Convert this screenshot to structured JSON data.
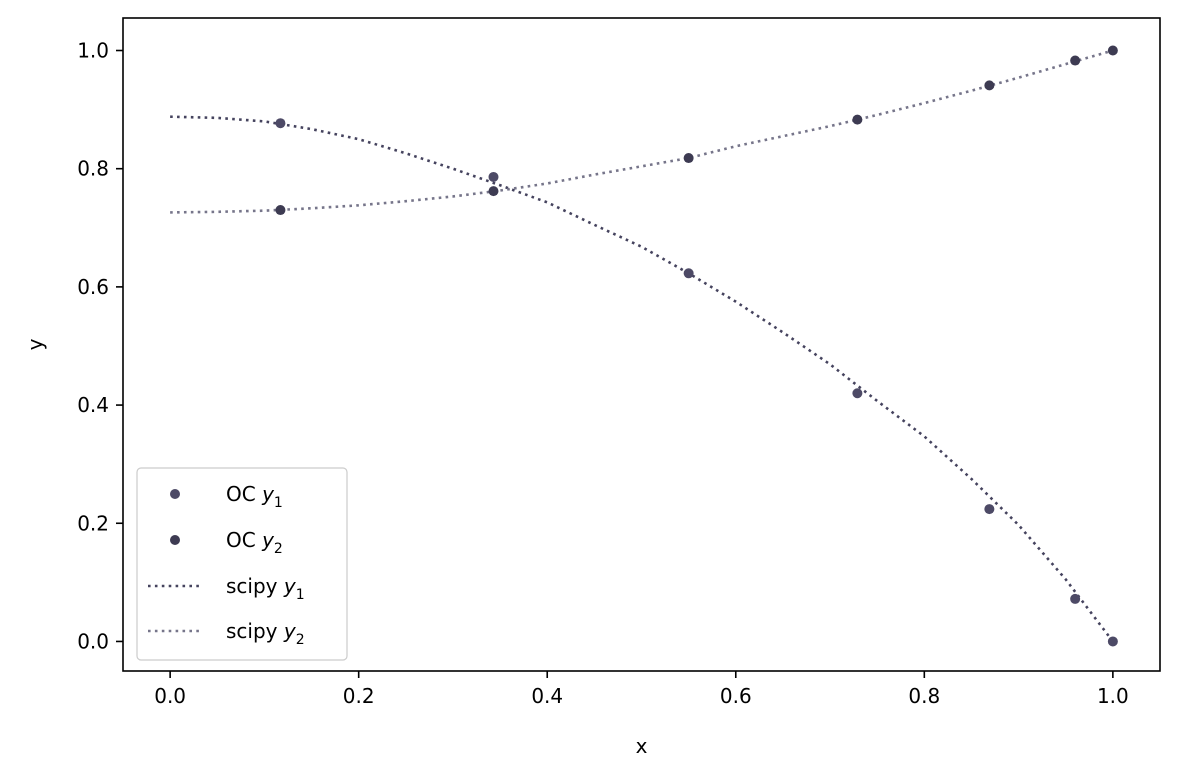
{
  "chart_data": {
    "type": "line",
    "xlabel": "x",
    "ylabel": "y",
    "xlim": [
      -0.05,
      1.05
    ],
    "ylim": [
      -0.05,
      1.055
    ],
    "xticks": [
      "0.0",
      "0.2",
      "0.4",
      "0.6",
      "0.8",
      "1.0"
    ],
    "yticks": [
      "0.0",
      "0.2",
      "0.4",
      "0.6",
      "0.8",
      "1.0"
    ],
    "grid": false,
    "legend_position": "lower-left",
    "colors": {
      "oc_y1": "#4d4a66",
      "oc_y2": "#3d3b52",
      "scipy_y1": "#45435e",
      "scipy_y2": "#76758a"
    },
    "series": [
      {
        "key": "oc_y1",
        "kind": "points",
        "name_prefix": "OC ",
        "name_var": "y",
        "name_sub": "1",
        "x": [
          0.117,
          0.343,
          0.55,
          0.729,
          0.869,
          0.96,
          1.0
        ],
        "y": [
          0.877,
          0.786,
          0.623,
          0.42,
          0.224,
          0.072,
          0.0
        ]
      },
      {
        "key": "oc_y2",
        "kind": "points",
        "name_prefix": "OC ",
        "name_var": "y",
        "name_sub": "2",
        "x": [
          0.117,
          0.343,
          0.55,
          0.729,
          0.869,
          0.96,
          1.0
        ],
        "y": [
          0.73,
          0.762,
          0.818,
          0.883,
          0.941,
          0.983,
          1.0
        ]
      },
      {
        "key": "scipy_y1",
        "kind": "line",
        "name_prefix": "scipy ",
        "name_var": "y",
        "name_sub": "1",
        "x": [
          0.0,
          0.05,
          0.1,
          0.15,
          0.2,
          0.25,
          0.3,
          0.35,
          0.4,
          0.45,
          0.5,
          0.55,
          0.6,
          0.65,
          0.7,
          0.75,
          0.8,
          0.85,
          0.9,
          0.95,
          1.0
        ],
        "y": [
          0.888,
          0.886,
          0.88,
          0.867,
          0.85,
          0.826,
          0.8,
          0.772,
          0.743,
          0.705,
          0.668,
          0.623,
          0.575,
          0.523,
          0.469,
          0.407,
          0.347,
          0.275,
          0.197,
          0.105,
          0.0
        ]
      },
      {
        "key": "scipy_y2",
        "kind": "line",
        "name_prefix": "scipy ",
        "name_var": "y",
        "name_sub": "2",
        "x": [
          0.0,
          0.05,
          0.1,
          0.15,
          0.2,
          0.25,
          0.3,
          0.35,
          0.4,
          0.45,
          0.5,
          0.55,
          0.6,
          0.65,
          0.7,
          0.75,
          0.8,
          0.85,
          0.9,
          0.95,
          1.0
        ],
        "y": [
          0.726,
          0.727,
          0.729,
          0.733,
          0.738,
          0.745,
          0.753,
          0.763,
          0.775,
          0.79,
          0.804,
          0.818,
          0.838,
          0.855,
          0.872,
          0.891,
          0.911,
          0.932,
          0.954,
          0.977,
          1.0
        ]
      }
    ]
  }
}
